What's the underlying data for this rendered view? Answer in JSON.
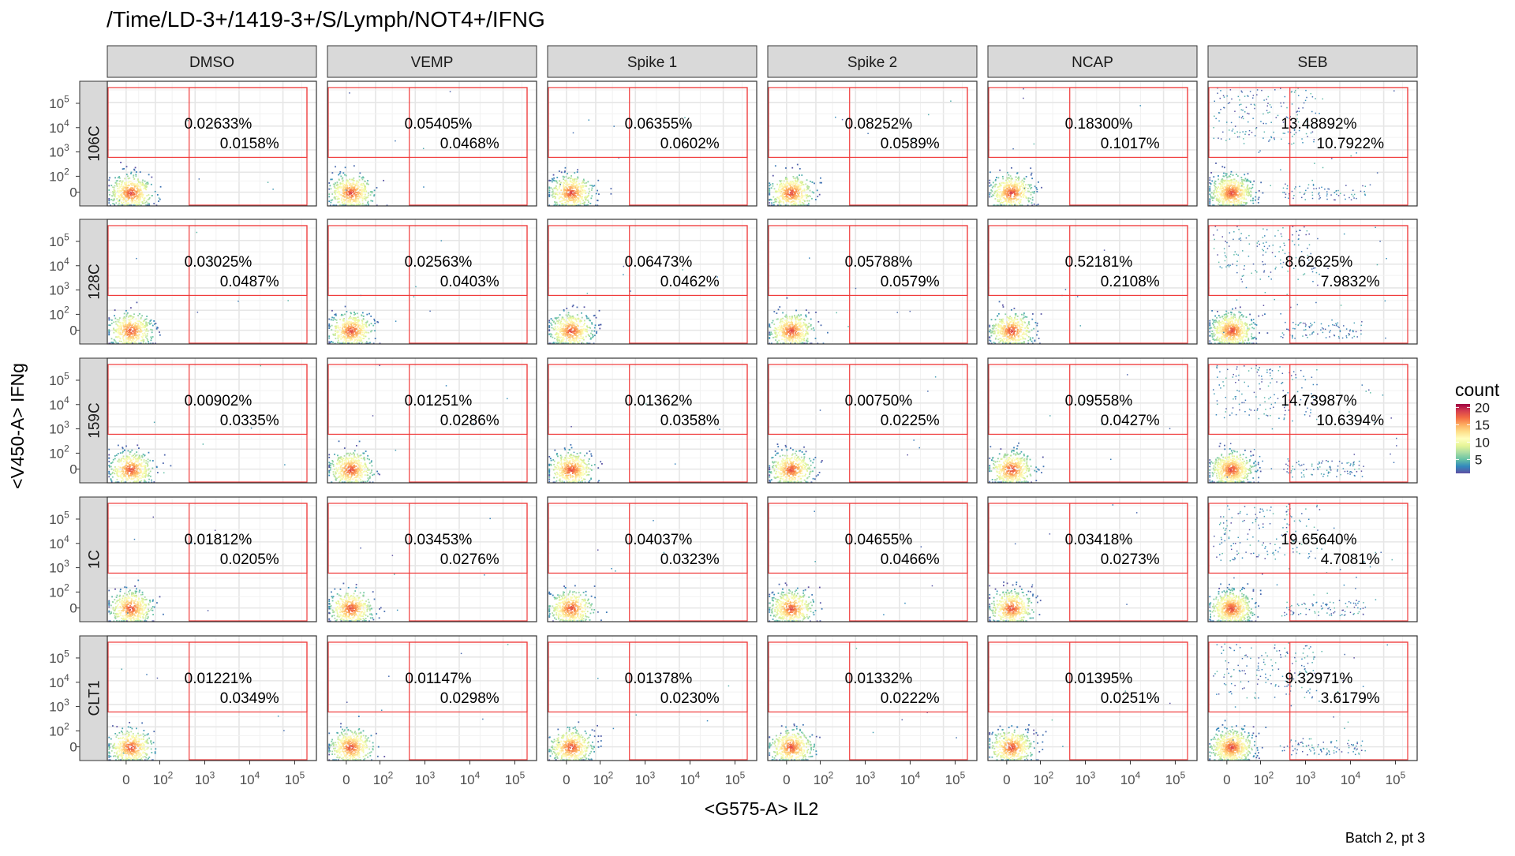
{
  "chart_data": {
    "type": "scatter",
    "plot_kind": "faceted flow-cytometry density dot plot with quadrant gates",
    "title": "/Time/LD-3+/1419-3+/S/Lymph/NOT4+/IFNG",
    "caption": "Batch 2, pt 3",
    "xlabel": "<G575-A> IL2",
    "ylabel": "<V450-A> IFNg",
    "x_scale": "biexponential",
    "y_scale": "biexponential",
    "x_ticks": [
      "0",
      "10^2",
      "10^3",
      "10^4",
      "10^5"
    ],
    "y_ticks": [
      "0",
      "10^2",
      "10^3",
      "10^4",
      "10^5"
    ],
    "x_gate_threshold": 450,
    "y_gate_threshold": 600,
    "grid": true,
    "legend": {
      "title": "count",
      "position": "right",
      "ticks": [
        5,
        10,
        15,
        20
      ],
      "range": [
        1,
        21
      ],
      "colors": [
        "#5e4fa2",
        "#3288bd",
        "#66c2a5",
        "#abdda4",
        "#e6f598",
        "#ffffbf",
        "#fee08b",
        "#fdae61",
        "#f46d43",
        "#d53e4f",
        "#9e0142"
      ]
    },
    "gate_color": "#f03b3b",
    "columns": [
      "DMSO",
      "VEMP",
      "Spike 1",
      "Spike 2",
      "NCAP",
      "SEB"
    ],
    "rows": [
      "106C",
      "128C",
      "159C",
      "1C",
      "CLT1"
    ],
    "cells": [
      [
        {
          "upper": "0.02633%",
          "lower": "0.0158%"
        },
        {
          "upper": "0.05405%",
          "lower": "0.0468%"
        },
        {
          "upper": "0.06355%",
          "lower": "0.0602%"
        },
        {
          "upper": "0.08252%",
          "lower": "0.0589%"
        },
        {
          "upper": "0.18300%",
          "lower": "0.1017%"
        },
        {
          "upper": "13.48892%",
          "lower": "10.7922%"
        }
      ],
      [
        {
          "upper": "0.03025%",
          "lower": "0.0487%"
        },
        {
          "upper": "0.02563%",
          "lower": "0.0403%"
        },
        {
          "upper": "0.06473%",
          "lower": "0.0462%"
        },
        {
          "upper": "0.05788%",
          "lower": "0.0579%"
        },
        {
          "upper": "0.52181%",
          "lower": "0.2108%"
        },
        {
          "upper": "8.62625%",
          "lower": "7.9832%"
        }
      ],
      [
        {
          "upper": "0.00902%",
          "lower": "0.0335%"
        },
        {
          "upper": "0.01251%",
          "lower": "0.0286%"
        },
        {
          "upper": "0.01362%",
          "lower": "0.0358%"
        },
        {
          "upper": "0.00750%",
          "lower": "0.0225%"
        },
        {
          "upper": "0.09558%",
          "lower": "0.0427%"
        },
        {
          "upper": "14.73987%",
          "lower": "10.6394%"
        }
      ],
      [
        {
          "upper": "0.01812%",
          "lower": "0.0205%"
        },
        {
          "upper": "0.03453%",
          "lower": "0.0276%"
        },
        {
          "upper": "0.04037%",
          "lower": "0.0323%"
        },
        {
          "upper": "0.04655%",
          "lower": "0.0466%"
        },
        {
          "upper": "0.03418%",
          "lower": "0.0273%"
        },
        {
          "upper": "19.65640%",
          "lower": "4.7081%"
        }
      ],
      [
        {
          "upper": "0.01221%",
          "lower": "0.0349%"
        },
        {
          "upper": "0.01147%",
          "lower": "0.0298%"
        },
        {
          "upper": "0.01378%",
          "lower": "0.0230%"
        },
        {
          "upper": "0.01332%",
          "lower": "0.0222%"
        },
        {
          "upper": "0.01395%",
          "lower": "0.0251%"
        },
        {
          "upper": "9.32971%",
          "lower": "3.6179%"
        }
      ]
    ]
  }
}
